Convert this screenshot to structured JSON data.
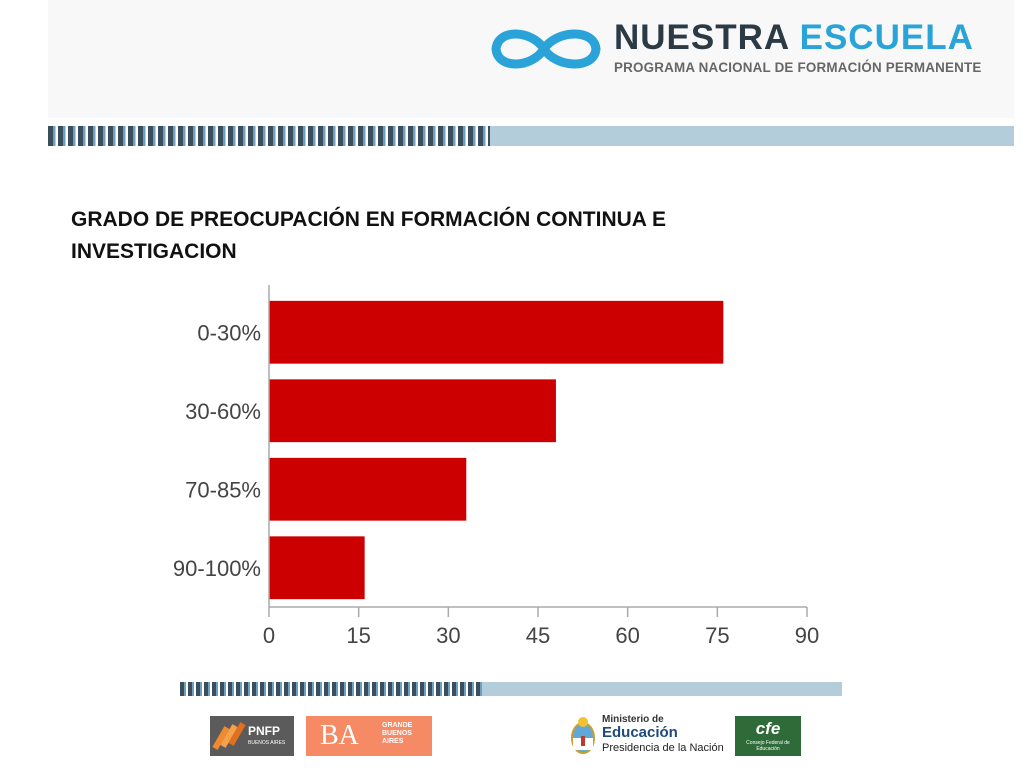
{
  "header": {
    "brand_title_part1": "NUESTRA",
    "brand_title_part2": "ESCUELA",
    "brand_subtitle": "PROGRAMA NACIONAL DE FORMACIÓN PERMANENTE",
    "brand_dark_color": "#2b3a45",
    "brand_accent_color": "#29a3d8",
    "logo_icon": "infinity-icon"
  },
  "slide": {
    "title": "GRADO DE PREOCUPACIÓN EN  FORMACIÓN CONTINUA E INVESTIGACION"
  },
  "chart_data": {
    "type": "bar",
    "orientation": "horizontal",
    "categories": [
      "0-30%",
      "30-60%",
      "70-85%",
      "90-100%"
    ],
    "values": [
      76,
      48,
      33,
      16
    ],
    "xlim": [
      0,
      90
    ],
    "xticks": [
      "0",
      "15",
      "30",
      "45",
      "60",
      "75",
      "90"
    ],
    "bar_color": "#cc0000",
    "grid": false,
    "legend": "none"
  },
  "footer": {
    "pnfp_label": "PNFP",
    "pnfp_sub": "BUENOS AIRES",
    "ba_label": "BA",
    "ba_sub": "GRANDE BUENOS AIRES",
    "ministerio_line1": "Ministerio de",
    "ministerio_line2": "Educación",
    "ministerio_line3": "Presidencia de la Nación",
    "cfe_label": "cfe",
    "cfe_sub": "Consejo Federal de Educación"
  },
  "colors": {
    "stripe_dark": "#3c4e5c",
    "stripe_blue": "#6f9fbf",
    "stripe_light": "#b4cddb"
  }
}
